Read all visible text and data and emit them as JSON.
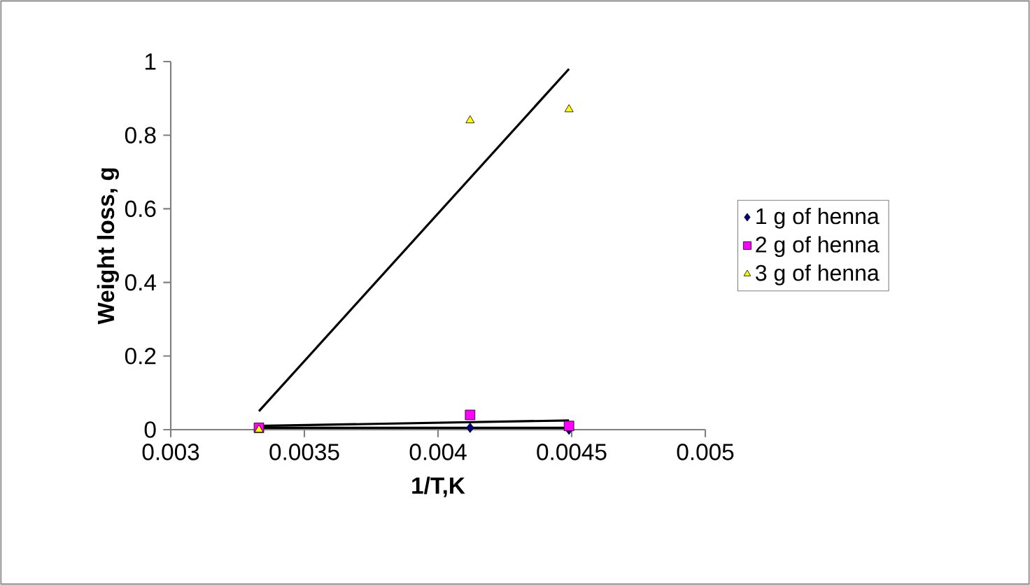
{
  "chart_data": {
    "type": "scatter",
    "xlabel": "1/T,K",
    "ylabel": "Weight loss, g",
    "xlim": [
      0.003,
      0.005
    ],
    "xticks": [
      0.003,
      0.0035,
      0.004,
      0.0045,
      0.005
    ],
    "ylim": [
      0,
      1
    ],
    "yticks": [
      0,
      0.2,
      0.4,
      0.6,
      0.8,
      1
    ],
    "grid": false,
    "legend": "right",
    "series": [
      {
        "name": "1 g of henna",
        "color": "#000080",
        "marker": "diamond",
        "x": [
          0.00412,
          0.00449
        ],
        "values": [
          0.005,
          0.0
        ]
      },
      {
        "name": "2 g of henna",
        "color": "#ff00ff",
        "marker": "square",
        "x": [
          0.00333,
          0.00412,
          0.00449
        ],
        "values": [
          0.005,
          0.04,
          0.01
        ]
      },
      {
        "name": "3 g of henna",
        "color": "#ffff00",
        "marker": "triangle",
        "x": [
          0.00333,
          0.00412,
          0.00449
        ],
        "values": [
          0.0,
          0.84,
          0.87
        ]
      },
      {
        "type": "line",
        "color": "#000000",
        "marker": "none",
        "x": [
          0.00333,
          0.00449
        ],
        "values": [
          0.005,
          0.005
        ]
      },
      {
        "type": "line",
        "color": "#000000",
        "marker": "none",
        "x": [
          0.00333,
          0.00449
        ],
        "values": [
          0.01,
          0.025
        ]
      },
      {
        "type": "line",
        "color": "#000000",
        "marker": "none",
        "x": [
          0.00333,
          0.00449
        ],
        "values": [
          0.05,
          0.98
        ]
      }
    ]
  }
}
